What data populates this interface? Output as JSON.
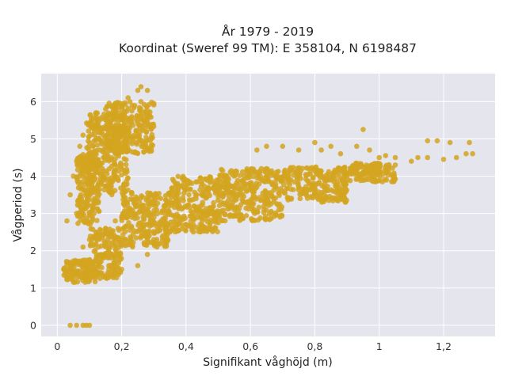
{
  "chart_data": {
    "type": "scatter",
    "title": "År 1979 - 2019",
    "subtitle": "Koordinat (Sweref 99 TM): E 358104, N 6198487",
    "xlabel": "Signifikant våghöjd (m)",
    "ylabel": "Vågperiod (s)",
    "xlim": [
      -0.05,
      1.36
    ],
    "ylim": [
      -0.3,
      6.75
    ],
    "x_ticks": [
      0,
      0.2,
      0.4,
      0.6,
      0.8,
      1,
      1.2
    ],
    "x_tick_labels": [
      "0",
      "0,2",
      "0,4",
      "0,6",
      "0,8",
      "1",
      "1,2"
    ],
    "y_ticks": [
      0,
      1,
      2,
      3,
      4,
      5,
      6
    ],
    "y_tick_labels": [
      "0",
      "1",
      "2",
      "3",
      "4",
      "5",
      "6"
    ],
    "grid": true,
    "legend": "none",
    "marker_color": "#D4A520",
    "background_color": "#E5E5EE",
    "series": [
      {
        "points": [
          [
            0.04,
            0.0
          ],
          [
            0.06,
            0.0
          ],
          [
            0.08,
            0.0
          ],
          [
            0.09,
            0.0
          ],
          [
            0.1,
            0.0
          ],
          [
            0.02,
            1.5
          ],
          [
            0.03,
            1.6
          ],
          [
            0.05,
            1.4
          ],
          [
            0.06,
            1.7
          ],
          [
            0.04,
            1.55
          ],
          [
            0.07,
            1.3
          ],
          [
            0.08,
            1.5
          ],
          [
            0.1,
            1.2
          ],
          [
            0.12,
            1.4
          ],
          [
            0.15,
            1.3
          ],
          [
            0.18,
            1.4
          ],
          [
            0.2,
            1.5
          ],
          [
            0.25,
            1.6
          ],
          [
            0.28,
            1.9
          ],
          [
            0.08,
            2.1
          ],
          [
            0.1,
            2.3
          ],
          [
            0.12,
            2.5
          ],
          [
            0.15,
            2.6
          ],
          [
            0.18,
            2.8
          ],
          [
            0.2,
            2.9
          ],
          [
            0.22,
            3.0
          ],
          [
            0.25,
            3.2
          ],
          [
            0.3,
            3.3
          ],
          [
            0.35,
            3.5
          ],
          [
            0.4,
            3.7
          ],
          [
            0.45,
            3.8
          ],
          [
            0.5,
            3.9
          ],
          [
            0.55,
            4.0
          ],
          [
            0.6,
            4.1
          ],
          [
            0.65,
            4.2
          ],
          [
            0.3,
            2.3
          ],
          [
            0.35,
            2.5
          ],
          [
            0.4,
            2.7
          ],
          [
            0.45,
            2.8
          ],
          [
            0.5,
            3.0
          ],
          [
            0.55,
            3.1
          ],
          [
            0.6,
            3.3
          ],
          [
            0.65,
            3.4
          ],
          [
            0.7,
            3.6
          ],
          [
            0.75,
            3.7
          ],
          [
            0.8,
            3.8
          ],
          [
            0.85,
            3.9
          ],
          [
            0.9,
            4.0
          ],
          [
            0.95,
            4.1
          ],
          [
            1.0,
            4.2
          ],
          [
            1.05,
            4.3
          ],
          [
            0.62,
            4.7
          ],
          [
            0.65,
            4.8
          ],
          [
            0.7,
            4.8
          ],
          [
            0.75,
            4.7
          ],
          [
            0.8,
            4.9
          ],
          [
            0.82,
            4.7
          ],
          [
            0.85,
            4.8
          ],
          [
            0.88,
            4.6
          ],
          [
            0.93,
            4.8
          ],
          [
            0.95,
            5.25
          ],
          [
            0.97,
            4.7
          ],
          [
            1.0,
            4.5
          ],
          [
            1.02,
            4.55
          ],
          [
            1.05,
            4.5
          ],
          [
            1.1,
            4.4
          ],
          [
            1.12,
            4.5
          ],
          [
            1.15,
            4.5
          ],
          [
            1.15,
            4.95
          ],
          [
            1.18,
            4.95
          ],
          [
            1.2,
            4.45
          ],
          [
            1.22,
            4.9
          ],
          [
            1.24,
            4.5
          ],
          [
            1.27,
            4.6
          ],
          [
            1.28,
            4.9
          ],
          [
            1.29,
            4.6
          ],
          [
            0.03,
            2.8
          ],
          [
            0.04,
            3.5
          ],
          [
            0.05,
            4.0
          ],
          [
            0.06,
            4.4
          ],
          [
            0.07,
            4.8
          ],
          [
            0.08,
            5.1
          ],
          [
            0.1,
            5.4
          ],
          [
            0.12,
            5.7
          ],
          [
            0.15,
            5.8
          ],
          [
            0.18,
            5.95
          ],
          [
            0.2,
            5.9
          ],
          [
            0.22,
            6.1
          ],
          [
            0.25,
            6.3
          ],
          [
            0.26,
            6.4
          ],
          [
            0.28,
            6.3
          ],
          [
            0.3,
            5.95
          ],
          [
            0.15,
            4.5
          ],
          [
            0.18,
            4.9
          ],
          [
            0.2,
            5.2
          ],
          [
            0.22,
            5.5
          ],
          [
            0.25,
            5.6
          ],
          [
            0.28,
            5.5
          ],
          [
            0.06,
            3.0
          ],
          [
            0.08,
            3.3
          ],
          [
            0.1,
            3.8
          ],
          [
            0.12,
            3.6
          ],
          [
            0.14,
            4.2
          ],
          [
            0.1,
            4.5
          ],
          [
            0.12,
            5.0
          ],
          [
            0.14,
            5.3
          ]
        ],
        "clusters": [
          {
            "x_from": 0.02,
            "x_to": 0.12,
            "y_from": 1.15,
            "y_to": 1.75
          },
          {
            "x_from": 0.1,
            "x_to": 0.2,
            "y_from": 1.25,
            "y_to": 2.6
          },
          {
            "x_from": 0.2,
            "x_to": 0.35,
            "y_from": 2.1,
            "y_to": 3.6
          },
          {
            "x_from": 0.35,
            "x_to": 0.5,
            "y_from": 2.5,
            "y_to": 4.0
          },
          {
            "x_from": 0.5,
            "x_to": 0.7,
            "y_from": 2.8,
            "y_to": 4.2
          },
          {
            "x_from": 0.7,
            "x_to": 0.9,
            "y_from": 3.3,
            "y_to": 4.25
          },
          {
            "x_from": 0.9,
            "x_to": 1.05,
            "y_from": 3.85,
            "y_to": 4.35
          },
          {
            "x_from": 0.06,
            "x_to": 0.13,
            "y_from": 2.7,
            "y_to": 4.6
          },
          {
            "x_from": 0.09,
            "x_to": 0.22,
            "y_from": 3.5,
            "y_to": 5.7
          },
          {
            "x_from": 0.15,
            "x_to": 0.3,
            "y_from": 4.6,
            "y_to": 6.0
          }
        ]
      }
    ]
  }
}
